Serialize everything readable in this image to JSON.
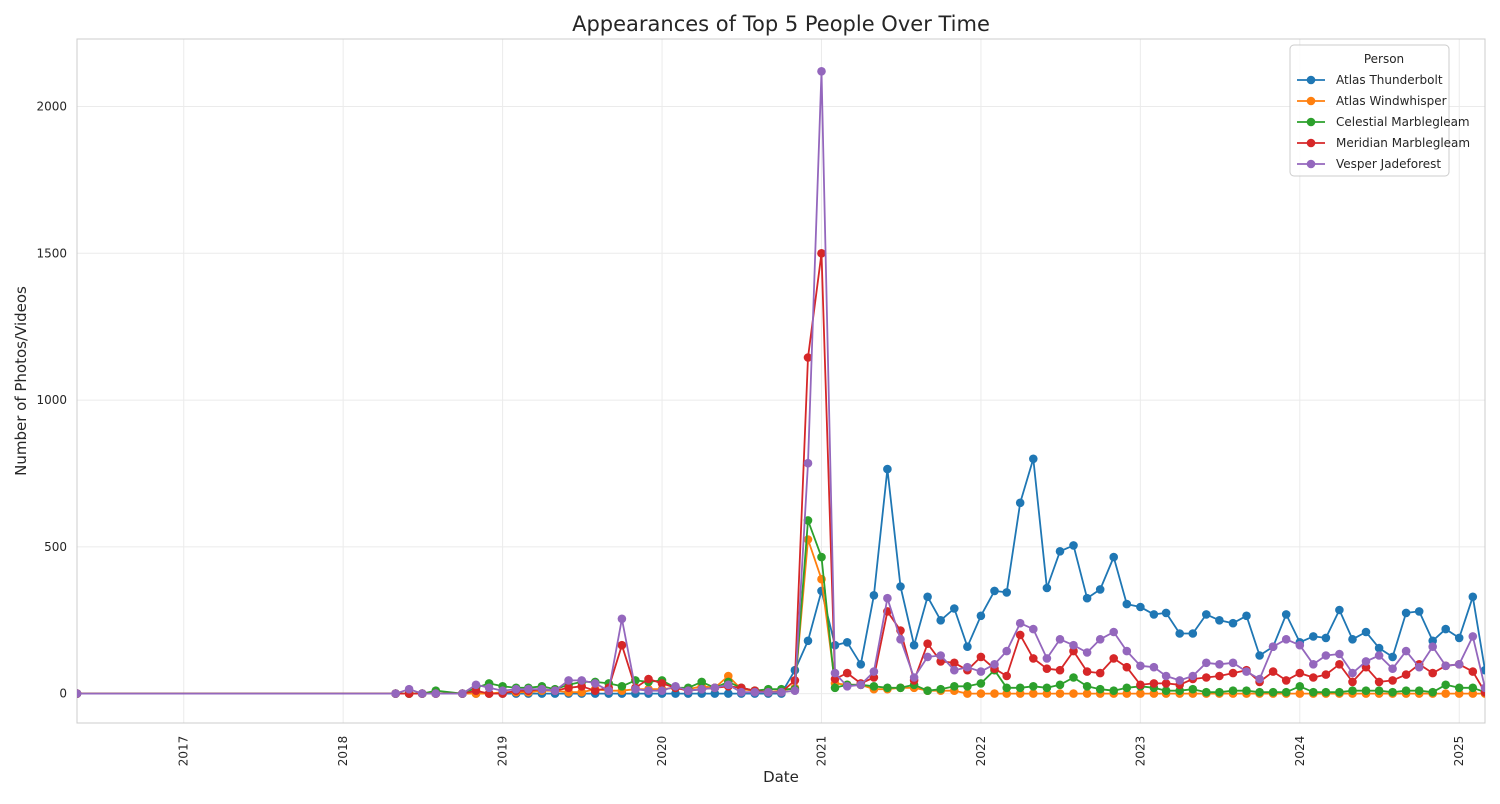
{
  "chart_data": {
    "type": "line",
    "title": "Appearances of Top 5 People Over Time",
    "xlabel": "Date",
    "ylabel": "Number of Photos/Videos",
    "xlim": [
      "2016-05-01",
      "2025-03-01"
    ],
    "ylim": [
      -100,
      2230
    ],
    "x_ticks": [
      "2017",
      "2018",
      "2019",
      "2020",
      "2021",
      "2022",
      "2023",
      "2024",
      "2025"
    ],
    "y_ticks": [
      "0",
      "500",
      "1000",
      "1500",
      "2000"
    ],
    "grid": true,
    "legend_position": "top-right",
    "legend_title": "Person",
    "colors": [
      "#1f77b4",
      "#ff7f0e",
      "#2ca02c",
      "#d62728",
      "#9467bd"
    ],
    "x": [
      "2016-05",
      "2018-05",
      "2018-06",
      "2018-07",
      "2018-08",
      "2018-10",
      "2018-11",
      "2018-12",
      "2019-01",
      "2019-02",
      "2019-03",
      "2019-04",
      "2019-05",
      "2019-06",
      "2019-07",
      "2019-08",
      "2019-09",
      "2019-10",
      "2019-11",
      "2019-12",
      "2020-01",
      "2020-02",
      "2020-03",
      "2020-04",
      "2020-05",
      "2020-06",
      "2020-07",
      "2020-08",
      "2020-09",
      "2020-10",
      "2020-11",
      "2020-12",
      "2021-01",
      "2021-02",
      "2021-03",
      "2021-04",
      "2021-05",
      "2021-06",
      "2021-07",
      "2021-08",
      "2021-09",
      "2021-10",
      "2021-11",
      "2021-12",
      "2022-01",
      "2022-02",
      "2022-03",
      "2022-04",
      "2022-05",
      "2022-06",
      "2022-07",
      "2022-08",
      "2022-09",
      "2022-10",
      "2022-11",
      "2022-12",
      "2023-01",
      "2023-02",
      "2023-03",
      "2023-04",
      "2023-05",
      "2023-06",
      "2023-07",
      "2023-08",
      "2023-09",
      "2023-10",
      "2023-11",
      "2023-12",
      "2024-01",
      "2024-02",
      "2024-03",
      "2024-04",
      "2024-05",
      "2024-06",
      "2024-07",
      "2024-08",
      "2024-09",
      "2024-10",
      "2024-11",
      "2024-12",
      "2025-01",
      "2025-02",
      "2025-03"
    ],
    "series": [
      {
        "name": "Atlas Thunderbolt",
        "values": [
          0,
          0,
          0,
          0,
          0,
          0,
          0,
          0,
          0,
          0,
          0,
          0,
          0,
          0,
          0,
          0,
          0,
          0,
          0,
          0,
          0,
          0,
          0,
          0,
          0,
          0,
          0,
          0,
          0,
          0,
          80,
          180,
          350,
          165,
          175,
          100,
          335,
          765,
          365,
          165,
          330,
          250,
          290,
          160,
          265,
          350,
          345,
          650,
          800,
          360,
          485,
          505,
          325,
          355,
          465,
          305,
          295,
          270,
          275,
          205,
          205,
          270,
          250,
          240,
          265,
          130,
          160,
          270,
          175,
          195,
          190,
          285,
          185,
          210,
          155,
          125,
          275,
          280,
          180,
          220,
          190,
          330,
          80
        ]
      },
      {
        "name": "Atlas Windwhisper",
        "values": [
          0,
          0,
          0,
          0,
          0,
          0,
          0,
          0,
          5,
          5,
          5,
          10,
          10,
          5,
          5,
          15,
          10,
          10,
          15,
          15,
          15,
          20,
          15,
          25,
          20,
          60,
          15,
          10,
          5,
          10,
          20,
          525,
          390,
          35,
          30,
          30,
          15,
          15,
          20,
          20,
          10,
          10,
          10,
          0,
          0,
          0,
          0,
          0,
          0,
          0,
          0,
          0,
          0,
          0,
          0,
          0,
          0,
          0,
          0,
          0,
          0,
          0,
          0,
          0,
          0,
          0,
          0,
          0,
          0,
          0,
          0,
          0,
          0,
          0,
          0,
          0,
          0,
          0,
          0,
          0,
          0,
          0,
          0
        ]
      },
      {
        "name": "Celestial Marblegleam",
        "values": [
          0,
          0,
          0,
          0,
          10,
          0,
          20,
          35,
          25,
          20,
          20,
          25,
          15,
          30,
          40,
          40,
          35,
          25,
          45,
          40,
          45,
          20,
          20,
          40,
          20,
          40,
          20,
          10,
          15,
          15,
          15,
          590,
          465,
          20,
          30,
          30,
          25,
          20,
          20,
          30,
          10,
          15,
          25,
          25,
          35,
          80,
          20,
          20,
          25,
          20,
          30,
          55,
          25,
          15,
          10,
          20,
          25,
          20,
          10,
          10,
          15,
          5,
          5,
          10,
          10,
          5,
          5,
          5,
          25,
          5,
          5,
          5,
          10,
          10,
          10,
          5,
          10,
          10,
          5,
          30,
          20,
          20,
          5
        ]
      },
      {
        "name": "Meridian Marblegleam",
        "values": [
          0,
          0,
          0,
          0,
          0,
          0,
          10,
          0,
          0,
          10,
          10,
          15,
          10,
          20,
          25,
          10,
          20,
          165,
          20,
          50,
          35,
          20,
          10,
          15,
          20,
          25,
          20,
          10,
          5,
          5,
          45,
          1145,
          1500,
          50,
          70,
          35,
          55,
          280,
          215,
          45,
          170,
          110,
          105,
          80,
          125,
          85,
          60,
          200,
          120,
          85,
          80,
          145,
          75,
          70,
          120,
          90,
          30,
          35,
          35,
          30,
          50,
          55,
          60,
          70,
          80,
          40,
          75,
          45,
          70,
          55,
          65,
          100,
          40,
          90,
          40,
          45,
          65,
          100,
          70,
          95,
          100,
          75,
          5
        ]
      },
      {
        "name": "Vesper Jadeforest",
        "values": [
          0,
          0,
          15,
          0,
          0,
          0,
          30,
          20,
          10,
          15,
          15,
          15,
          10,
          45,
          45,
          35,
          10,
          255,
          15,
          10,
          10,
          25,
          10,
          15,
          20,
          30,
          5,
          5,
          5,
          5,
          10,
          785,
          2120,
          70,
          25,
          30,
          75,
          325,
          185,
          55,
          125,
          130,
          80,
          90,
          75,
          100,
          145,
          240,
          220,
          120,
          185,
          165,
          140,
          185,
          210,
          145,
          95,
          90,
          60,
          45,
          60,
          105,
          100,
          105,
          75,
          50,
          160,
          185,
          165,
          100,
          130,
          135,
          70,
          110,
          130,
          85,
          145,
          90,
          160,
          95,
          100,
          195,
          20
        ]
      }
    ]
  }
}
